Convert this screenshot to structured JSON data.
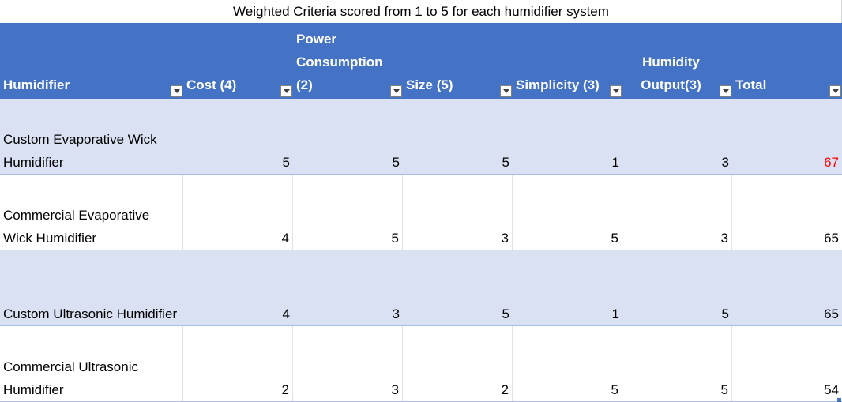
{
  "table": {
    "title": "Weighted Criteria scored from 1 to 5 for each humidifier system",
    "headers": [
      {
        "label": "Humidifier"
      },
      {
        "label": "Cost (4)"
      },
      {
        "label": "Power Consumption (2)"
      },
      {
        "label": "Size (5)"
      },
      {
        "label": "Simplicity (3)"
      },
      {
        "label": "Humidity Output(3)"
      },
      {
        "label": "Total"
      }
    ],
    "rows": [
      {
        "name": "Custom Evaporative Wick Humidifier",
        "cost": "5",
        "power": "5",
        "size": "5",
        "simplicity": "1",
        "humidity": "3",
        "total": "67"
      },
      {
        "name": "Commercial Evaporative Wick Humidifier",
        "cost": "4",
        "power": "5",
        "size": "3",
        "simplicity": "5",
        "humidity": "3",
        "total": "65"
      },
      {
        "name": "Custom Ultrasonic Humidifier",
        "cost": "4",
        "power": "3",
        "size": "5",
        "simplicity": "1",
        "humidity": "5",
        "total": "65"
      },
      {
        "name": "Commercial Ultrasonic Humidifier",
        "cost": "2",
        "power": "3",
        "size": "2",
        "simplicity": "5",
        "humidity": "5",
        "total": "54"
      }
    ],
    "colors": {
      "header_bg": "#4472c4",
      "band_bg": "#d9e1f2",
      "highlight_total": "#ff0000"
    }
  }
}
